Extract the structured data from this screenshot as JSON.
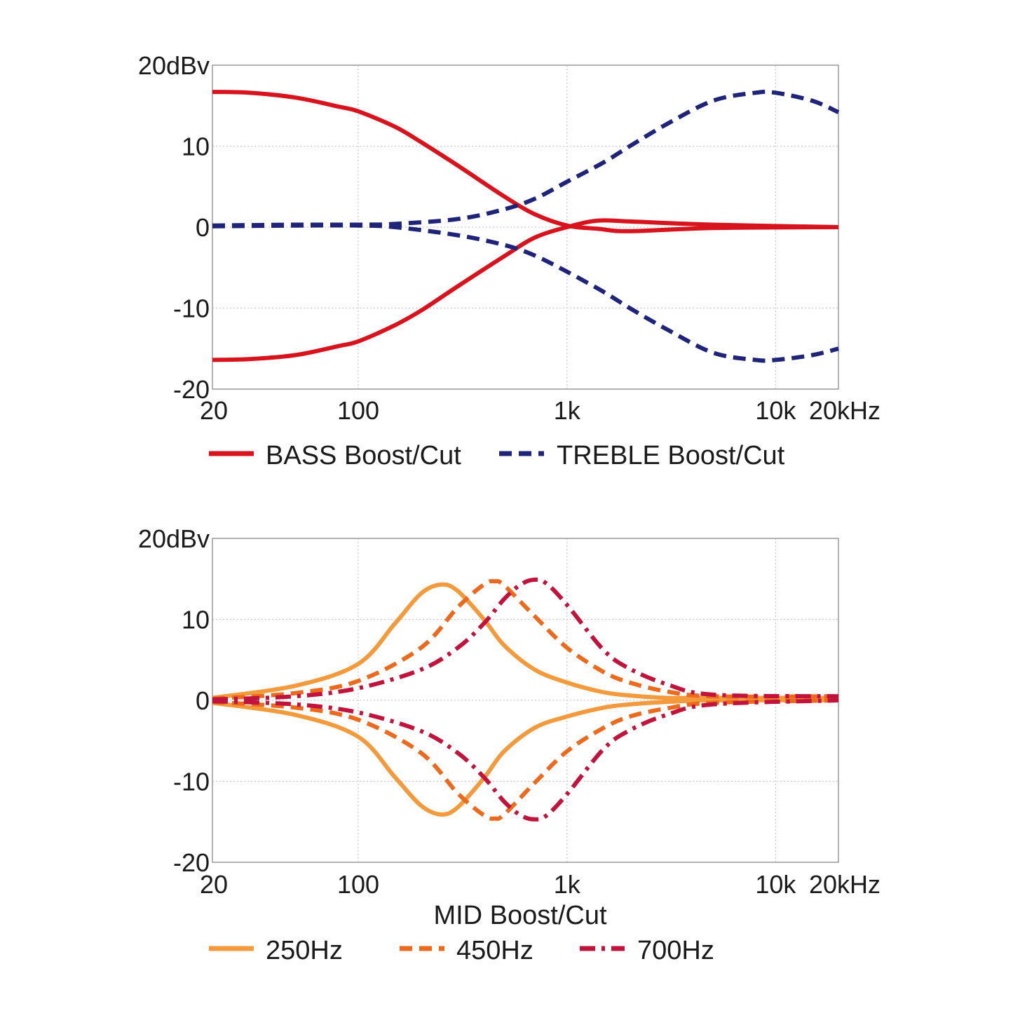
{
  "colors": {
    "bass": "#d7141e",
    "treble": "#1f2478",
    "mid_250": "#f39a3c",
    "mid_450": "#ec6a1e",
    "mid_700": "#c0143c"
  },
  "chart_data": [
    {
      "type": "line",
      "x_scale": "log",
      "xlim": [
        20,
        20000
      ],
      "ylim": [
        -20,
        20
      ],
      "grid": true,
      "x_ticks": [
        {
          "value": 20,
          "label": "20"
        },
        {
          "value": 100,
          "label": "100"
        },
        {
          "value": 1000,
          "label": "1k"
        },
        {
          "value": 10000,
          "label": "10k"
        },
        {
          "value": 20000,
          "label": "20kHz"
        }
      ],
      "y_ticks": [
        {
          "value": 20,
          "label": "20dBv"
        },
        {
          "value": 10,
          "label": "10"
        },
        {
          "value": 0,
          "label": "0"
        },
        {
          "value": -10,
          "label": "-10"
        },
        {
          "value": -20,
          "label": "-20"
        }
      ],
      "xlabel": "",
      "legend": [
        {
          "label": "BASS Boost/Cut",
          "style": "solid",
          "color_key": "bass"
        },
        {
          "label": "TREBLE Boost/Cut",
          "style": "dash",
          "color_key": "treble"
        }
      ],
      "series": [
        {
          "group": "BASS Boost/Cut",
          "style": "solid",
          "color_key": "bass",
          "x": [
            20,
            30,
            50,
            80,
            100,
            150,
            200,
            300,
            500,
            700,
            1000,
            1400,
            2000,
            5000,
            20000
          ],
          "y": [
            16.7,
            16.6,
            16.0,
            14.9,
            14.3,
            12.4,
            10.5,
            7.6,
            3.8,
            1.6,
            0.2,
            -0.2,
            -0.5,
            -0.1,
            0.0
          ]
        },
        {
          "group": "BASS Boost/Cut",
          "style": "solid",
          "color_key": "bass",
          "x": [
            20,
            30,
            50,
            80,
            100,
            150,
            200,
            300,
            500,
            700,
            1000,
            1400,
            2000,
            5000,
            20000
          ],
          "y": [
            -16.4,
            -16.3,
            -15.8,
            -14.7,
            -14.1,
            -12.1,
            -10.3,
            -7.3,
            -3.6,
            -1.3,
            0.0,
            0.8,
            0.7,
            0.3,
            0.0
          ]
        },
        {
          "group": "TREBLE Boost/Cut",
          "style": "dash",
          "color_key": "treble",
          "x": [
            20,
            50,
            100,
            150,
            300,
            500,
            700,
            1000,
            1500,
            2000,
            3000,
            5000,
            8000,
            10000,
            15000,
            20000
          ],
          "y": [
            0.2,
            0.3,
            0.3,
            0.4,
            1.0,
            2.2,
            3.5,
            5.6,
            8.0,
            10.0,
            12.7,
            15.6,
            16.6,
            16.6,
            15.6,
            14.2
          ]
        },
        {
          "group": "TREBLE Boost/Cut",
          "style": "dash",
          "color_key": "treble",
          "x": [
            20,
            50,
            100,
            150,
            300,
            500,
            700,
            1000,
            1500,
            2000,
            3000,
            5000,
            8000,
            10000,
            15000,
            20000
          ],
          "y": [
            0.1,
            0.2,
            0.2,
            0.0,
            -1.0,
            -2.2,
            -3.5,
            -5.5,
            -8.0,
            -10.0,
            -12.6,
            -15.5,
            -16.4,
            -16.4,
            -15.8,
            -15.0
          ]
        }
      ]
    },
    {
      "type": "line",
      "x_scale": "log",
      "xlim": [
        20,
        20000
      ],
      "ylim": [
        -20,
        20
      ],
      "grid": true,
      "x_ticks": [
        {
          "value": 20,
          "label": "20"
        },
        {
          "value": 100,
          "label": "100"
        },
        {
          "value": 1000,
          "label": "1k"
        },
        {
          "value": 10000,
          "label": "10k"
        },
        {
          "value": 20000,
          "label": "20kHz"
        }
      ],
      "y_ticks": [
        {
          "value": 20,
          "label": "20dBv"
        },
        {
          "value": 10,
          "label": "10"
        },
        {
          "value": 0,
          "label": "0"
        },
        {
          "value": -10,
          "label": "-10"
        },
        {
          "value": -20,
          "label": "-20"
        }
      ],
      "xlabel": "MID Boost/Cut",
      "legend": [
        {
          "label": "250Hz",
          "style": "solid",
          "color_key": "mid_250"
        },
        {
          "label": "450Hz",
          "style": "dash",
          "color_key": "mid_450"
        },
        {
          "label": "700Hz",
          "style": "dashdot",
          "color_key": "mid_700"
        }
      ],
      "series": [
        {
          "group": "250Hz",
          "style": "solid",
          "color_key": "mid_250",
          "x": [
            20,
            50,
            100,
            150,
            200,
            250,
            300,
            400,
            500,
            700,
            1000,
            1500,
            2000,
            3000,
            5000,
            20000
          ],
          "y": [
            0.3,
            1.8,
            4.5,
            9.5,
            13.2,
            14.3,
            13.5,
            10.0,
            6.8,
            3.8,
            2.2,
            1.0,
            0.6,
            0.3,
            0.3,
            0.3
          ]
        },
        {
          "group": "250Hz",
          "style": "solid",
          "color_key": "mid_250",
          "x": [
            20,
            50,
            100,
            150,
            200,
            250,
            300,
            400,
            500,
            700,
            1000,
            1500,
            2000,
            3000,
            5000,
            20000
          ],
          "y": [
            -0.3,
            -1.8,
            -4.5,
            -9.5,
            -13.0,
            -14.1,
            -13.2,
            -9.6,
            -6.3,
            -3.4,
            -2.0,
            -0.9,
            -0.5,
            -0.2,
            0.0,
            0.0
          ]
        },
        {
          "group": "450Hz",
          "style": "dash",
          "color_key": "mid_450",
          "x": [
            20,
            50,
            100,
            200,
            300,
            400,
            450,
            500,
            700,
            1000,
            1500,
            2000,
            3000,
            5000,
            20000
          ],
          "y": [
            0.2,
            0.9,
            2.4,
            6.5,
            11.5,
            14.3,
            14.7,
            14.2,
            10.4,
            6.5,
            3.5,
            2.2,
            1.1,
            0.5,
            0.5
          ]
        },
        {
          "group": "450Hz",
          "style": "dash",
          "color_key": "mid_450",
          "x": [
            20,
            50,
            100,
            200,
            300,
            400,
            450,
            500,
            700,
            1000,
            1500,
            2000,
            3000,
            5000,
            20000
          ],
          "y": [
            -0.2,
            -0.9,
            -2.4,
            -6.5,
            -11.5,
            -14.2,
            -14.6,
            -14.1,
            -10.2,
            -6.3,
            -3.4,
            -2.0,
            -1.0,
            -0.3,
            0.0
          ]
        },
        {
          "group": "700Hz",
          "style": "dashdot",
          "color_key": "mid_700",
          "x": [
            20,
            50,
            100,
            200,
            300,
            400,
            500,
            600,
            700,
            800,
            1000,
            1500,
            2000,
            3000,
            5000,
            20000
          ],
          "y": [
            0.1,
            0.5,
            1.5,
            3.8,
            6.5,
            9.5,
            12.5,
            14.3,
            14.9,
            14.4,
            11.8,
            6.2,
            3.9,
            2.0,
            0.7,
            0.5
          ]
        },
        {
          "group": "700Hz",
          "style": "dashdot",
          "color_key": "mid_700",
          "x": [
            20,
            50,
            100,
            200,
            300,
            400,
            500,
            600,
            700,
            800,
            1000,
            1500,
            2000,
            3000,
            5000,
            20000
          ],
          "y": [
            -0.1,
            -0.5,
            -1.5,
            -3.8,
            -6.5,
            -9.5,
            -12.5,
            -14.2,
            -14.7,
            -14.2,
            -11.6,
            -6.0,
            -3.7,
            -1.8,
            -0.5,
            0.0
          ]
        }
      ]
    }
  ]
}
